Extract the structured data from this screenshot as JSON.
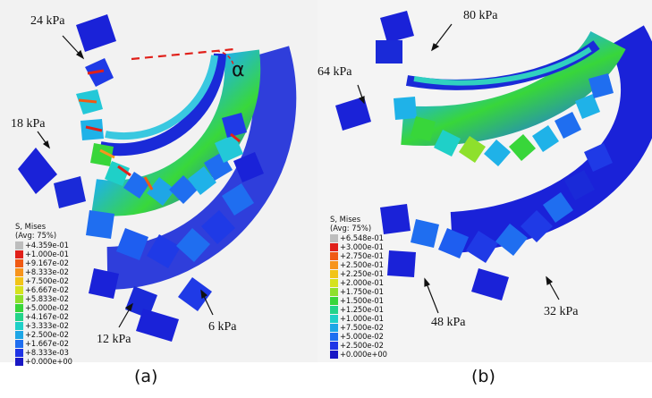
{
  "panel_a": {
    "caption": "(a)",
    "angle_label": "α",
    "annotations": {
      "top": "24 kPa",
      "left": "18 kPa",
      "bottom": "12 kPa",
      "right": "6 kPa"
    },
    "legend": {
      "title_line1": "S, Mises",
      "title_line2": "(Avg: 75%)",
      "entries": [
        "+4.359e-01",
        "+1.000e-01",
        "+9.167e-02",
        "+8.333e-02",
        "+7.500e-02",
        "+6.667e-02",
        "+5.833e-02",
        "+5.000e-02",
        "+4.167e-02",
        "+3.333e-02",
        "+2.500e-02",
        "+1.667e-02",
        "+8.333e-03",
        "+0.000e+00"
      ]
    }
  },
  "panel_b": {
    "caption": "(b)",
    "annotations": {
      "top": "80 kPa",
      "left": "64 kPa",
      "bottom": "48 kPa",
      "right": "32 kPa"
    },
    "legend": {
      "title_line1": "S, Mises",
      "title_line2": "(Avg: 75%)",
      "entries": [
        "+6.548e-01",
        "+3.000e-01",
        "+2.750e-01",
        "+2.500e-01",
        "+2.250e-01",
        "+2.000e-01",
        "+1.750e-01",
        "+1.500e-01",
        "+1.250e-01",
        "+1.000e-01",
        "+7.500e-02",
        "+5.000e-02",
        "+2.500e-02",
        "+0.000e+00"
      ]
    }
  },
  "legend_colors": [
    "#bdbdbd",
    "#e0201a",
    "#f05a14",
    "#f7941d",
    "#f2c418",
    "#d6e21e",
    "#8ee02c",
    "#38d63a",
    "#23d48a",
    "#1fd0c8",
    "#1ea6e6",
    "#1f6ef0",
    "#1f34e6",
    "#1a18c4"
  ]
}
